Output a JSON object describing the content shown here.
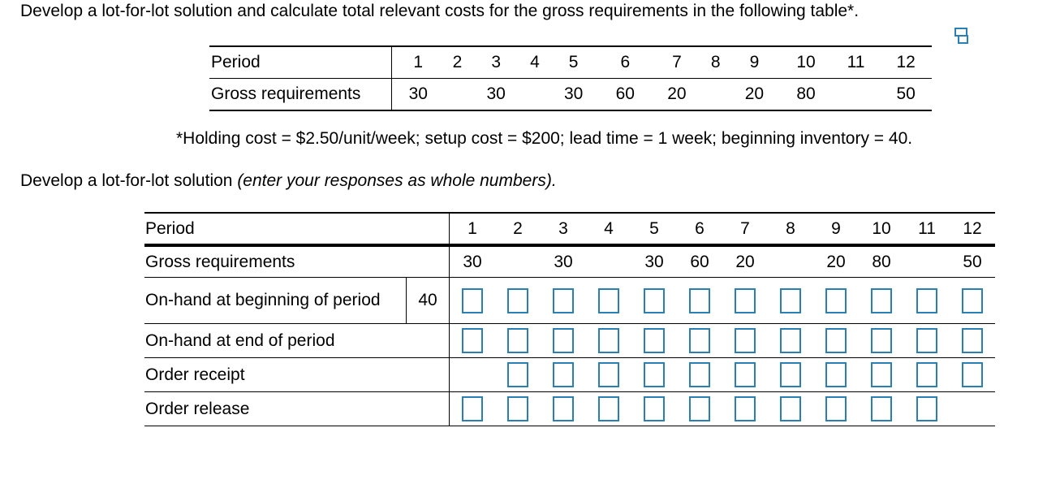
{
  "prompt": "Develop a lot-for-lot solution and calculate total relevant costs for the gross requirements in the following table*.",
  "given_table": {
    "period_label": "Period",
    "gross_label": "Gross requirements",
    "periods": [
      "1",
      "2",
      "3",
      "4",
      "5",
      "6",
      "7",
      "8",
      "9",
      "10",
      "11",
      "12"
    ],
    "gross": [
      "30",
      "",
      "30",
      "",
      "30",
      "60",
      "20",
      "",
      "20",
      "80",
      "",
      "50"
    ]
  },
  "note": "*Holding cost = $2.50/unit/week; setup cost = $200; lead time = 1 week; beginning inventory = 40.",
  "instruction": {
    "main": "Develop a lot-for-lot solution ",
    "italic": "(enter your responses as whole numbers)."
  },
  "answer_table": {
    "period_label": "Period",
    "gross_label": "Gross requirements",
    "onhand_begin_label": "On-hand at beginning of period",
    "onhand_begin_initial": "40",
    "onhand_end_label": "On-hand at end of period",
    "order_receipt_label": "Order receipt",
    "order_release_label": "Order release",
    "periods": [
      "1",
      "2",
      "3",
      "4",
      "5",
      "6",
      "7",
      "8",
      "9",
      "10",
      "11",
      "12"
    ],
    "gross": [
      "30",
      "",
      "30",
      "",
      "30",
      "60",
      "20",
      "",
      "20",
      "80",
      "",
      "50"
    ]
  },
  "icons": {
    "copy": "copy-icon"
  },
  "colors": {
    "input_border": "#2a7fb4"
  }
}
